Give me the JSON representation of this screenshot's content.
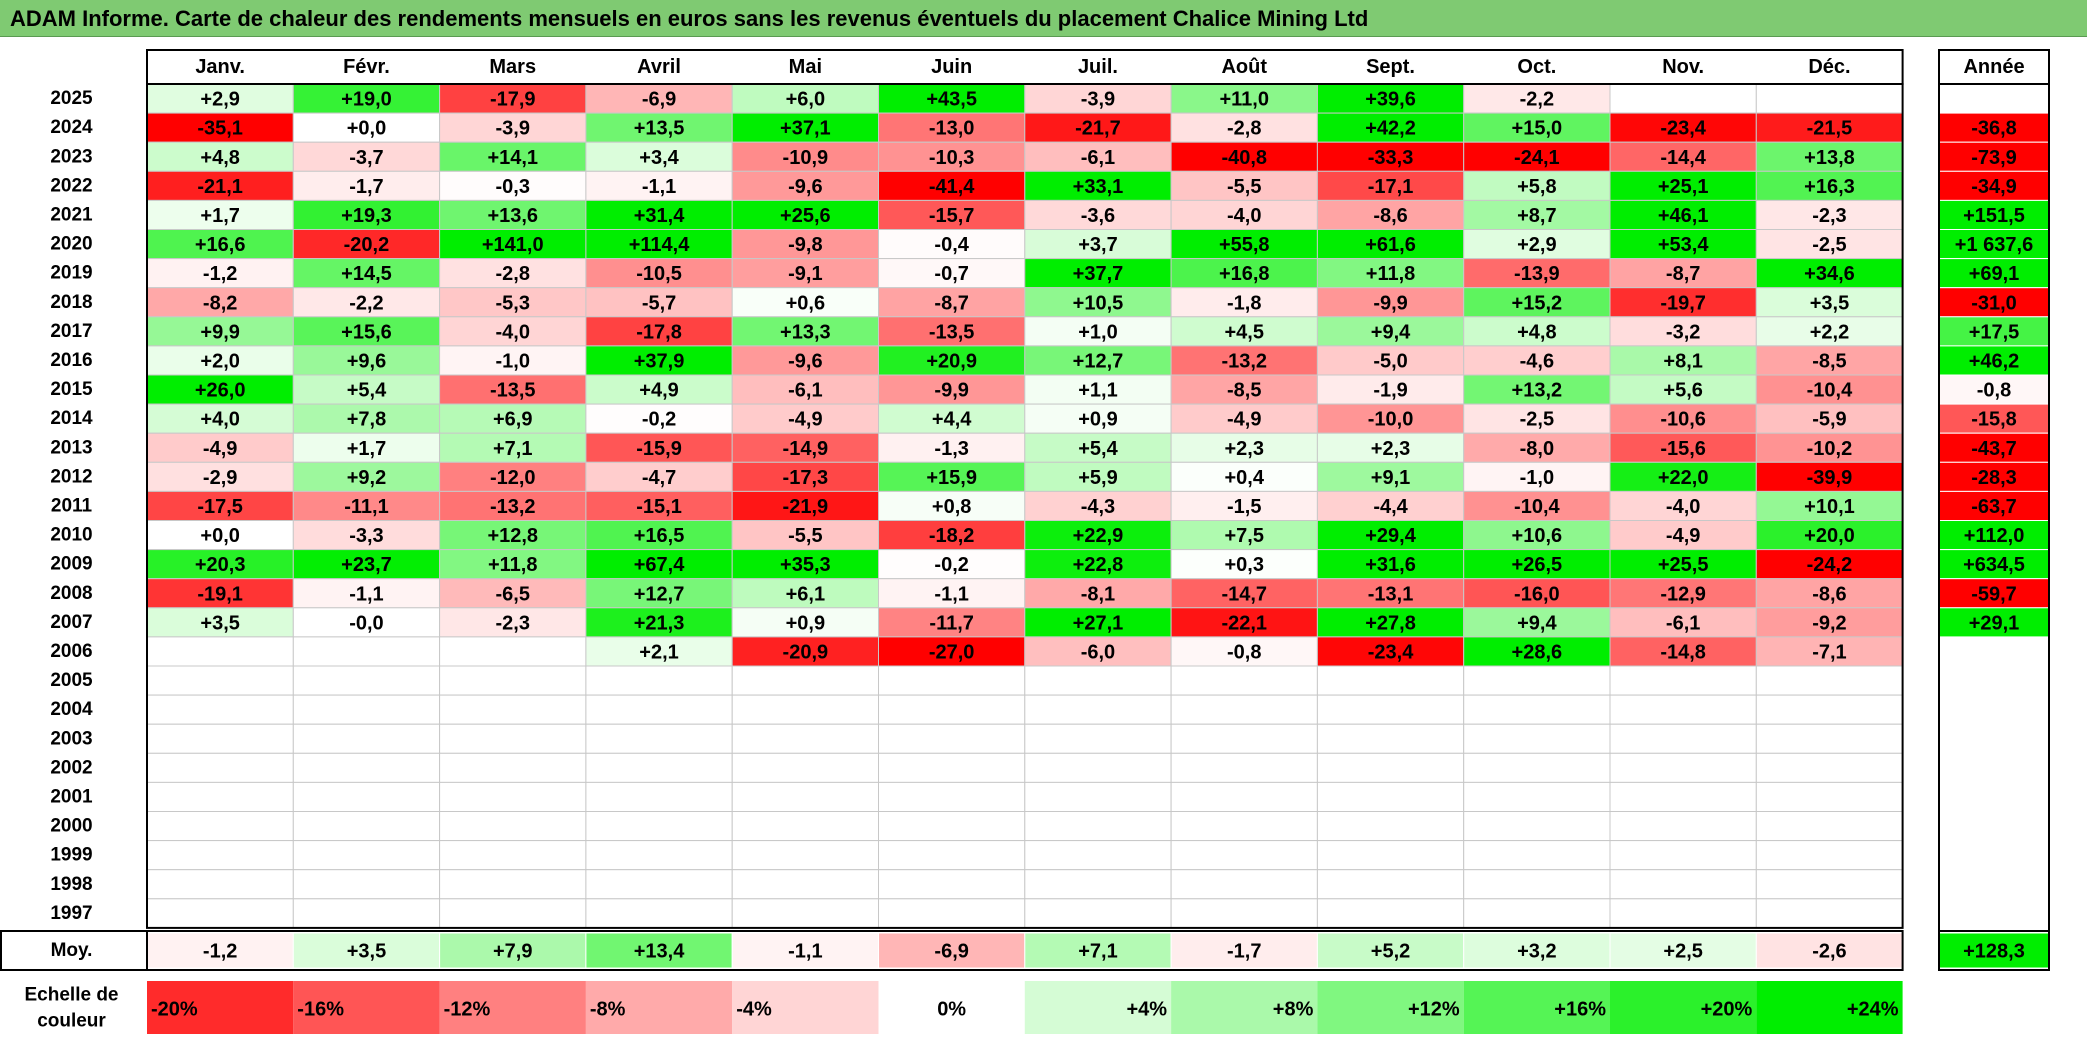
{
  "title": "ADAM Informe. Carte de chaleur des rendements mensuels en euros sans les revenus éventuels du placement Chalice Mining Ltd",
  "chart_data": {
    "type": "heatmap",
    "months": [
      "Janv.",
      "Févr.",
      "Mars",
      "Avril",
      "Mai",
      "Juin",
      "Juil.",
      "Août",
      "Sept.",
      "Oct.",
      "Nov.",
      "Déc."
    ],
    "year_header": "Année",
    "rows": [
      {
        "year": "2025",
        "values": [
          "+2,9",
          "+19,0",
          "-17,9",
          "-6,9",
          "+6,0",
          "+43,5",
          "-3,9",
          "+11,0",
          "+39,6",
          "-2,2",
          "",
          ""
        ],
        "annual": ""
      },
      {
        "year": "2024",
        "values": [
          "-35,1",
          "+0,0",
          "-3,9",
          "+13,5",
          "+37,1",
          "-13,0",
          "-21,7",
          "-2,8",
          "+42,2",
          "+15,0",
          "-23,4",
          "-21,5"
        ],
        "annual": "-36,8"
      },
      {
        "year": "2023",
        "values": [
          "+4,8",
          "-3,7",
          "+14,1",
          "+3,4",
          "-10,9",
          "-10,3",
          "-6,1",
          "-40,8",
          "-33,3",
          "-24,1",
          "-14,4",
          "+13,8"
        ],
        "annual": "-73,9"
      },
      {
        "year": "2022",
        "values": [
          "-21,1",
          "-1,7",
          "-0,3",
          "-1,1",
          "-9,6",
          "-41,4",
          "+33,1",
          "-5,5",
          "-17,1",
          "+5,8",
          "+25,1",
          "+16,3"
        ],
        "annual": "-34,9"
      },
      {
        "year": "2021",
        "values": [
          "+1,7",
          "+19,3",
          "+13,6",
          "+31,4",
          "+25,6",
          "-15,7",
          "-3,6",
          "-4,0",
          "-8,6",
          "+8,7",
          "+46,1",
          "-2,3"
        ],
        "annual": "+151,5"
      },
      {
        "year": "2020",
        "values": [
          "+16,6",
          "-20,2",
          "+141,0",
          "+114,4",
          "-9,8",
          "-0,4",
          "+3,7",
          "+55,8",
          "+61,6",
          "+2,9",
          "+53,4",
          "-2,5"
        ],
        "annual": "+1 637,6"
      },
      {
        "year": "2019",
        "values": [
          "-1,2",
          "+14,5",
          "-2,8",
          "-10,5",
          "-9,1",
          "-0,7",
          "+37,7",
          "+16,8",
          "+11,8",
          "-13,9",
          "-8,7",
          "+34,6"
        ],
        "annual": "+69,1"
      },
      {
        "year": "2018",
        "values": [
          "-8,2",
          "-2,2",
          "-5,3",
          "-5,7",
          "+0,6",
          "-8,7",
          "+10,5",
          "-1,8",
          "-9,9",
          "+15,2",
          "-19,7",
          "+3,5"
        ],
        "annual": "-31,0"
      },
      {
        "year": "2017",
        "values": [
          "+9,9",
          "+15,6",
          "-4,0",
          "-17,8",
          "+13,3",
          "-13,5",
          "+1,0",
          "+4,5",
          "+9,4",
          "+4,8",
          "-3,2",
          "+2,2"
        ],
        "annual": "+17,5"
      },
      {
        "year": "2016",
        "values": [
          "+2,0",
          "+9,6",
          "-1,0",
          "+37,9",
          "-9,6",
          "+20,9",
          "+12,7",
          "-13,2",
          "-5,0",
          "-4,6",
          "+8,1",
          "-8,5"
        ],
        "annual": "+46,2"
      },
      {
        "year": "2015",
        "values": [
          "+26,0",
          "+5,4",
          "-13,5",
          "+4,9",
          "-6,1",
          "-9,9",
          "+1,1",
          "-8,5",
          "-1,9",
          "+13,2",
          "+5,6",
          "-10,4"
        ],
        "annual": "-0,8"
      },
      {
        "year": "2014",
        "values": [
          "+4,0",
          "+7,8",
          "+6,9",
          "-0,2",
          "-4,9",
          "+4,4",
          "+0,9",
          "-4,9",
          "-10,0",
          "-2,5",
          "-10,6",
          "-5,9"
        ],
        "annual": "-15,8"
      },
      {
        "year": "2013",
        "values": [
          "-4,9",
          "+1,7",
          "+7,1",
          "-15,9",
          "-14,9",
          "-1,3",
          "+5,4",
          "+2,3",
          "+2,3",
          "-8,0",
          "-15,6",
          "-10,2"
        ],
        "annual": "-43,7"
      },
      {
        "year": "2012",
        "values": [
          "-2,9",
          "+9,2",
          "-12,0",
          "-4,7",
          "-17,3",
          "+15,9",
          "+5,9",
          "+0,4",
          "+9,1",
          "-1,0",
          "+22,0",
          "-39,9"
        ],
        "annual": "-28,3"
      },
      {
        "year": "2011",
        "values": [
          "-17,5",
          "-11,1",
          "-13,2",
          "-15,1",
          "-21,9",
          "+0,8",
          "-4,3",
          "-1,5",
          "-4,4",
          "-10,4",
          "-4,0",
          "+10,1"
        ],
        "annual": "-63,7"
      },
      {
        "year": "2010",
        "values": [
          "+0,0",
          "-3,3",
          "+12,8",
          "+16,5",
          "-5,5",
          "-18,2",
          "+22,9",
          "+7,5",
          "+29,4",
          "+10,6",
          "-4,9",
          "+20,0"
        ],
        "annual": "+112,0"
      },
      {
        "year": "2009",
        "values": [
          "+20,3",
          "+23,7",
          "+11,8",
          "+67,4",
          "+35,3",
          "-0,2",
          "+22,8",
          "+0,3",
          "+31,6",
          "+26,5",
          "+25,5",
          "-24,2"
        ],
        "annual": "+634,5"
      },
      {
        "year": "2008",
        "values": [
          "-19,1",
          "-1,1",
          "-6,5",
          "+12,7",
          "+6,1",
          "-1,1",
          "-8,1",
          "-14,7",
          "-13,1",
          "-16,0",
          "-12,9",
          "-8,6"
        ],
        "annual": "-59,7"
      },
      {
        "year": "2007",
        "values": [
          "+3,5",
          "-0,0",
          "-2,3",
          "+21,3",
          "+0,9",
          "-11,7",
          "+27,1",
          "-22,1",
          "+27,8",
          "+9,4",
          "-6,1",
          "-9,2"
        ],
        "annual": "+29,1"
      },
      {
        "year": "2006",
        "values": [
          "",
          "",
          "",
          "+2,1",
          "-20,9",
          "-27,0",
          "-6,0",
          "-0,8",
          "-23,4",
          "+28,6",
          "-14,8",
          "-7,1"
        ],
        "annual": ""
      },
      {
        "year": "2005",
        "values": [
          "",
          "",
          "",
          "",
          "",
          "",
          "",
          "",
          "",
          "",
          "",
          ""
        ],
        "annual": ""
      },
      {
        "year": "2004",
        "values": [
          "",
          "",
          "",
          "",
          "",
          "",
          "",
          "",
          "",
          "",
          "",
          ""
        ],
        "annual": ""
      },
      {
        "year": "2003",
        "values": [
          "",
          "",
          "",
          "",
          "",
          "",
          "",
          "",
          "",
          "",
          "",
          ""
        ],
        "annual": ""
      },
      {
        "year": "2002",
        "values": [
          "",
          "",
          "",
          "",
          "",
          "",
          "",
          "",
          "",
          "",
          "",
          ""
        ],
        "annual": ""
      },
      {
        "year": "2001",
        "values": [
          "",
          "",
          "",
          "",
          "",
          "",
          "",
          "",
          "",
          "",
          "",
          ""
        ],
        "annual": ""
      },
      {
        "year": "2000",
        "values": [
          "",
          "",
          "",
          "",
          "",
          "",
          "",
          "",
          "",
          "",
          "",
          ""
        ],
        "annual": ""
      },
      {
        "year": "1999",
        "values": [
          "",
          "",
          "",
          "",
          "",
          "",
          "",
          "",
          "",
          "",
          "",
          ""
        ],
        "annual": ""
      },
      {
        "year": "1998",
        "values": [
          "",
          "",
          "",
          "",
          "",
          "",
          "",
          "",
          "",
          "",
          "",
          ""
        ],
        "annual": ""
      },
      {
        "year": "1997",
        "values": [
          "",
          "",
          "",
          "",
          "",
          "",
          "",
          "",
          "",
          "",
          "",
          ""
        ],
        "annual": ""
      }
    ],
    "average": {
      "label": "Moy.",
      "values": [
        "-1,2",
        "+3,5",
        "+7,9",
        "+13,4",
        "-1,1",
        "-6,9",
        "+7,1",
        "-1,7",
        "+5,2",
        "+3,2",
        "+2,5",
        "-2,6"
      ],
      "annual": "+128,3"
    },
    "scale": {
      "label_line1": "Echelle de",
      "label_line2": "couleur",
      "steps": [
        "-20%",
        "-16%",
        "-12%",
        "-8%",
        "-4%",
        "0%",
        "+4%",
        "+8%",
        "+12%",
        "+16%",
        "+20%",
        "+24%"
      ]
    },
    "colors": {
      "negative": "#ff0000",
      "positive": "#00ee00",
      "neutral": "#ffffff",
      "title_bar": "#7fca72"
    }
  }
}
